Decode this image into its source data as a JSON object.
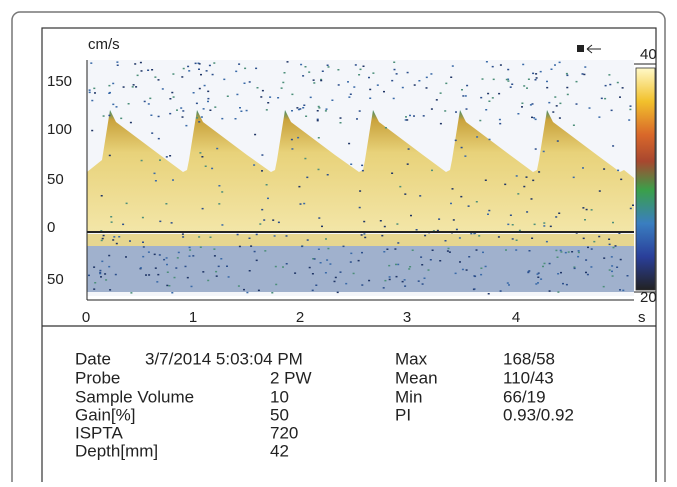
{
  "spectrum": {
    "velocity_unit": "cm/s",
    "velocity_labels": [
      "150",
      "100",
      "50",
      "0",
      "50"
    ],
    "time_labels": [
      "0",
      "1",
      "2",
      "3",
      "4"
    ],
    "time_unit": "s",
    "scale_top": "40",
    "scale_bottom": "20"
  },
  "info": {
    "left": [
      [
        "Date",
        "3/7/2014 5:03:04 PM"
      ],
      [
        "Probe",
        "2 PW"
      ],
      [
        "Sample Volume",
        "10"
      ],
      [
        "Gain[%]",
        "50"
      ],
      [
        "ISPTA",
        "720"
      ],
      [
        "Depth[mm]",
        "42"
      ]
    ],
    "right": [
      [
        "Max",
        "168/58"
      ],
      [
        "Mean",
        "110/43"
      ],
      [
        "Min",
        "66/19"
      ],
      [
        "PI",
        "0.93/0.92"
      ]
    ]
  }
}
